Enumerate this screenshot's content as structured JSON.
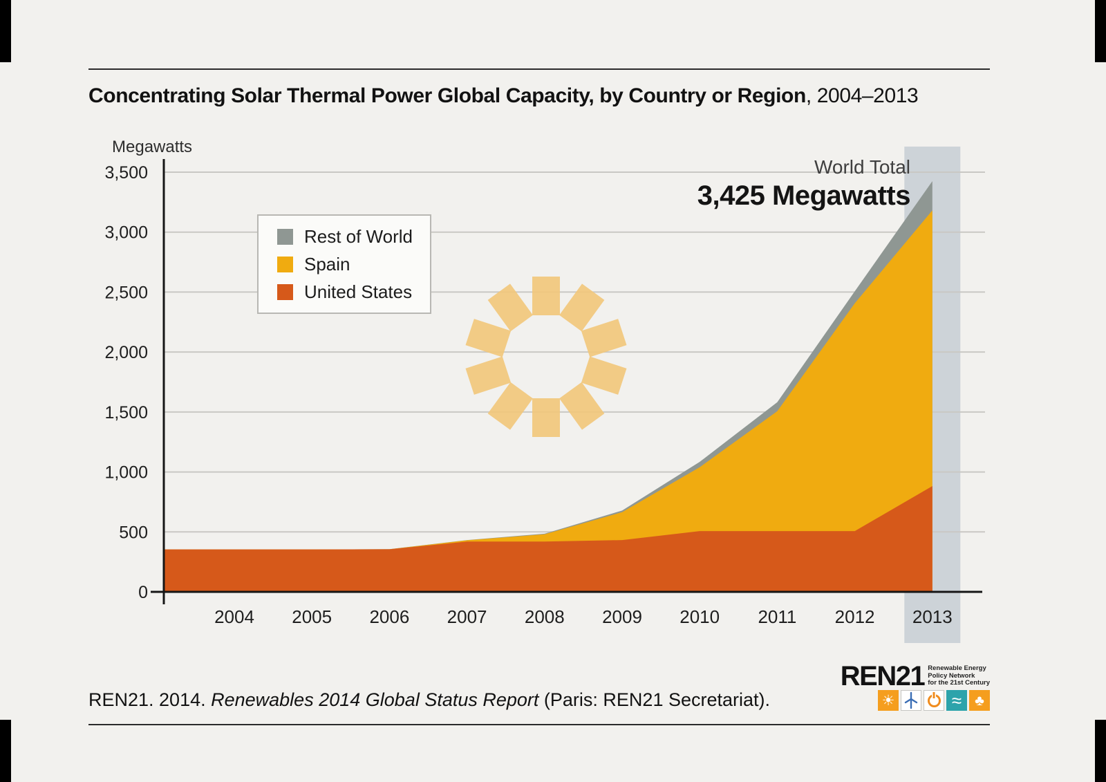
{
  "title": {
    "bold": "Concentrating Solar Thermal Power Global Capacity, by Country or Region",
    "rest": ", 2004–2013"
  },
  "annotation": {
    "label": "World Total",
    "value": "3,425 Megawatts"
  },
  "source": {
    "prefix": "REN21. 2014. ",
    "italic": "Renewables 2014 Global Status Report",
    "suffix": " (Paris: REN21 Secretariat)."
  },
  "logo": {
    "name": "REN21",
    "tagline": "Renewable Energy\nPolicy Network\nfor the 21st Century",
    "icons": [
      {
        "name": "sun-icon",
        "kind": "glyph",
        "glyph": "☀",
        "bg": "#f59e1e",
        "fg": "#ffffff",
        "size": 21
      },
      {
        "name": "wind-turbine-icon",
        "kind": "turbine",
        "bg": "#ffffff",
        "fg": "#3a6db4",
        "border": "#c6c5c2"
      },
      {
        "name": "power-icon",
        "kind": "power",
        "bg": "#ffffff",
        "fg": "#f08c1e",
        "border": "#c6c5c2"
      },
      {
        "name": "water-waves-icon",
        "kind": "glyph",
        "glyph": "≈",
        "bg": "#2da3ab",
        "fg": "#ffffff",
        "size": 26
      },
      {
        "name": "biomass-leaf-icon",
        "kind": "glyph",
        "glyph": "♣",
        "bg": "#f59e1e",
        "fg": "#ffffff",
        "size": 21
      }
    ]
  },
  "legend": {
    "items": [
      {
        "label": "Rest of World",
        "color": "#8f9793"
      },
      {
        "label": "Spain",
        "color": "#f0ab10"
      },
      {
        "label": "United States",
        "color": "#d6591a"
      }
    ]
  },
  "colors": {
    "background": "#f2f1ee",
    "gridline": "#c9c8c4",
    "axis": "#161616",
    "highlight_band": "#cdd3d8",
    "watermark": "#f3c77a",
    "tick_text": "#1e1e1e"
  },
  "chart_data": {
    "type": "area",
    "stacked": true,
    "title": "Concentrating Solar Thermal Power Global Capacity, by Country or Region, 2004–2013",
    "xlabel": "",
    "ylabel": "Megawatts",
    "categories": [
      "2004",
      "2005",
      "2006",
      "2007",
      "2008",
      "2009",
      "2010",
      "2011",
      "2012",
      "2013"
    ],
    "series": [
      {
        "name": "United States",
        "color": "#d6591a",
        "values": [
          354,
          354,
          355,
          419,
          419,
          432,
          507,
          507,
          507,
          882
        ]
      },
      {
        "name": "Spain",
        "color": "#f0ab10",
        "values": [
          0,
          0,
          0,
          11,
          61,
          232,
          532,
          999,
          1900,
          2300
        ]
      },
      {
        "name": "Rest of World",
        "color": "#8f9793",
        "values": [
          0,
          0,
          1,
          2,
          5,
          14,
          45,
          75,
          100,
          243
        ]
      }
    ],
    "ylim": [
      0,
      3500
    ],
    "ytick_step": 500,
    "ytick_labels": [
      "0",
      "500",
      "1,000",
      "1,500",
      "2,000",
      "2,500",
      "3,000",
      "3,500"
    ],
    "grid": true,
    "legend_position": "upper-left",
    "highlight_category": "2013",
    "world_total_megawatts": 3425
  }
}
